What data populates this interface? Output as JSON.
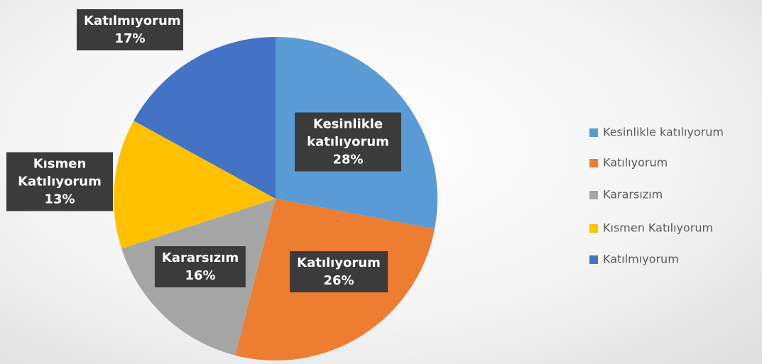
{
  "chart_data": {
    "type": "pie",
    "categories": [
      "Kesinlikle katılıyorum",
      "Katılıyorum",
      "Kararsızım",
      "Kısmen Katılıyorum",
      "Katılmıyorum"
    ],
    "values": [
      28,
      26,
      16,
      13,
      17
    ],
    "value_labels": [
      "28%",
      "26%",
      "16%",
      "13%",
      "17%"
    ],
    "colors": [
      "#5b9bd5",
      "#ed7d31",
      "#a5a5a5",
      "#ffc000",
      "#4472c4"
    ],
    "legend": "right"
  }
}
